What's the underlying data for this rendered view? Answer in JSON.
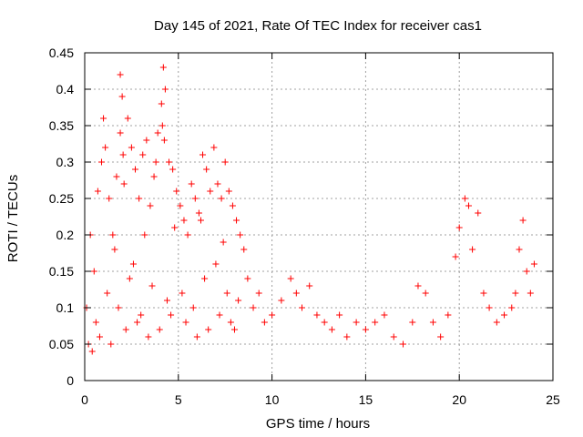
{
  "chart_data": {
    "type": "scatter",
    "title": "Day 145 of 2021, Rate Of TEC Index for receiver cas1",
    "xlabel": "GPS time / hours",
    "ylabel": "ROTI / TECUs",
    "xlim": [
      0,
      25
    ],
    "ylim": [
      0,
      0.45
    ],
    "xticks": [
      0,
      5,
      10,
      15,
      20,
      25
    ],
    "xtick_labels": [
      "0",
      "5",
      "10",
      "15",
      "20",
      "25"
    ],
    "yticks": [
      0,
      0.05,
      0.1,
      0.15,
      0.2,
      0.25,
      0.3,
      0.35,
      0.4,
      0.45
    ],
    "ytick_labels": [
      "0",
      "0.05",
      "0.1",
      "0.15",
      "0.2",
      "0.25",
      "0.3",
      "0.35",
      "0.4",
      "0.45"
    ],
    "grid": true,
    "marker": "+",
    "color": "#ff0000",
    "series": [
      {
        "name": "cas1",
        "x": [
          0.1,
          0.3,
          0.5,
          0.7,
          0.9,
          1.0,
          1.1,
          1.3,
          1.5,
          1.7,
          1.9,
          2.0,
          2.1,
          2.3,
          2.5,
          2.7,
          2.9,
          3.1,
          3.3,
          3.5,
          3.7,
          3.9,
          4.1,
          4.2,
          4.3,
          4.5,
          4.7,
          4.9,
          5.1,
          5.3,
          5.5,
          5.7,
          5.9,
          6.1,
          6.3,
          6.5,
          6.7,
          6.9,
          7.1,
          7.3,
          7.5,
          7.7,
          7.9,
          8.1,
          8.3,
          8.5,
          8.7,
          9.0,
          9.3,
          9.6,
          10.0,
          10.5,
          11.0,
          11.3,
          11.6,
          12.0,
          12.4,
          12.8,
          13.2,
          13.6,
          14.0,
          14.5,
          15.0,
          15.5,
          16.0,
          16.5,
          17.0,
          17.5,
          17.8,
          18.2,
          18.6,
          19.0,
          19.4,
          19.8,
          20.0,
          20.3,
          20.5,
          20.7,
          21.0,
          21.3,
          21.6,
          22.0,
          22.4,
          22.8,
          23.0,
          23.2,
          23.4,
          23.6,
          23.8,
          24.0,
          0.2,
          0.6,
          1.2,
          1.8,
          2.4,
          3.0,
          3.6,
          4.4,
          5.2,
          5.8,
          6.4,
          7.0,
          7.6,
          8.2,
          0.4,
          0.8,
          1.4,
          2.2,
          2.8,
          3.4,
          4.0,
          4.6,
          5.4,
          6.0,
          6.6,
          7.2,
          7.8,
          8.0,
          1.6,
          3.2,
          4.8,
          6.2,
          7.4,
          2.6,
          4.15,
          4.25,
          1.9,
          2.05,
          3.8
        ],
        "y": [
          0.1,
          0.2,
          0.15,
          0.26,
          0.3,
          0.36,
          0.32,
          0.25,
          0.2,
          0.28,
          0.42,
          0.39,
          0.27,
          0.36,
          0.32,
          0.29,
          0.25,
          0.31,
          0.33,
          0.24,
          0.28,
          0.34,
          0.38,
          0.43,
          0.4,
          0.3,
          0.29,
          0.26,
          0.24,
          0.22,
          0.2,
          0.27,
          0.25,
          0.23,
          0.31,
          0.29,
          0.26,
          0.32,
          0.27,
          0.25,
          0.3,
          0.26,
          0.24,
          0.22,
          0.2,
          0.18,
          0.14,
          0.1,
          0.12,
          0.08,
          0.09,
          0.11,
          0.14,
          0.12,
          0.1,
          0.13,
          0.09,
          0.08,
          0.07,
          0.09,
          0.06,
          0.08,
          0.07,
          0.08,
          0.09,
          0.06,
          0.05,
          0.08,
          0.13,
          0.12,
          0.08,
          0.06,
          0.09,
          0.17,
          0.21,
          0.25,
          0.24,
          0.18,
          0.23,
          0.12,
          0.1,
          0.08,
          0.09,
          0.1,
          0.12,
          0.18,
          0.22,
          0.15,
          0.12,
          0.16,
          0.05,
          0.08,
          0.12,
          0.1,
          0.14,
          0.09,
          0.13,
          0.11,
          0.12,
          0.1,
          0.14,
          0.16,
          0.12,
          0.11,
          0.04,
          0.06,
          0.05,
          0.07,
          0.08,
          0.06,
          0.07,
          0.09,
          0.08,
          0.06,
          0.07,
          0.09,
          0.08,
          0.07,
          0.18,
          0.2,
          0.21,
          0.22,
          0.19,
          0.16,
          0.35,
          0.33,
          0.34,
          0.31,
          0.3
        ]
      }
    ]
  }
}
